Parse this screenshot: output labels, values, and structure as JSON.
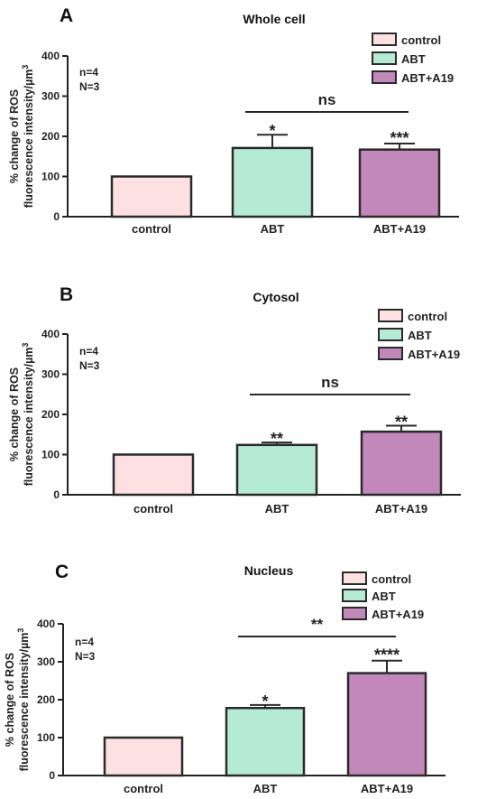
{
  "chart_data": [
    {
      "type": "bar",
      "panel_label": "A",
      "title": "Whole cell",
      "ylabel_line1": "% change of ROS",
      "ylabel_line2": "fluorescence intensity/µm",
      "ylabel_superscript": "3",
      "notes": [
        "n=4",
        "N=3"
      ],
      "categories": [
        "control",
        "ABT",
        "ABT+A19"
      ],
      "values": [
        100,
        171,
        167
      ],
      "error": [
        0,
        33,
        15
      ],
      "significance": [
        "",
        "*",
        "***"
      ],
      "comparison": {
        "from": 1,
        "to": 2,
        "label": "ns"
      },
      "yticks": [
        0,
        100,
        200,
        300,
        400
      ],
      "ylim": [
        0,
        400
      ],
      "legend": [
        "control",
        "ABT",
        "ABT+A19"
      ],
      "legend_position": "top-right"
    },
    {
      "type": "bar",
      "panel_label": "B",
      "title": "Cytosol",
      "ylabel_line1": "% change of ROS",
      "ylabel_line2": "fluorescence intensity/µm",
      "ylabel_superscript": "3",
      "notes": [
        "n=4",
        "N=3"
      ],
      "categories": [
        "control",
        "ABT",
        "ABT+A19"
      ],
      "values": [
        100,
        124,
        157
      ],
      "error": [
        0,
        6,
        15
      ],
      "significance": [
        "",
        "**",
        "**"
      ],
      "comparison": {
        "from": 1,
        "to": 2,
        "label": "ns"
      },
      "yticks": [
        0,
        100,
        200,
        300,
        400
      ],
      "ylim": [
        0,
        400
      ],
      "legend": [
        "control",
        "ABT",
        "ABT+A19"
      ],
      "legend_position": "top-right"
    },
    {
      "type": "bar",
      "panel_label": "C",
      "title": "Nucleus",
      "ylabel_line1": "% change of ROS",
      "ylabel_line2": "fluorescence intensity/µm",
      "ylabel_superscript": "3",
      "notes": [
        "n=4",
        "N=3"
      ],
      "categories": [
        "control",
        "ABT",
        "ABT+A19"
      ],
      "values": [
        100,
        178,
        270
      ],
      "error": [
        0,
        8,
        33
      ],
      "significance": [
        "",
        "*",
        "****"
      ],
      "comparison": {
        "from": 1,
        "to": 2,
        "label": "**"
      },
      "yticks": [
        0,
        100,
        200,
        300,
        400
      ],
      "ylim": [
        0,
        400
      ],
      "legend": [
        "control",
        "ABT",
        "ABT+A19"
      ],
      "legend_position": "top-right"
    }
  ],
  "colors": {
    "control": "#fde0e2",
    "ABT": "#b5ead6",
    "ABT+A19": "#c388ba",
    "stroke": "#2a2a2a"
  }
}
